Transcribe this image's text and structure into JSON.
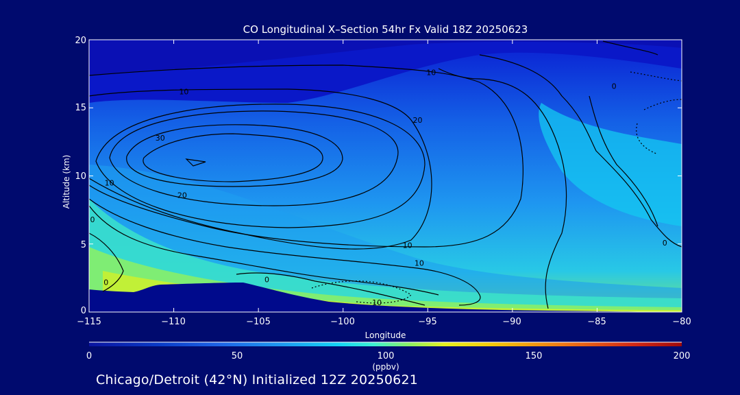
{
  "chart_data": {
    "type": "heatmap",
    "title": "CO Longitudinal X–Section 54hr  Fx Valid 18Z 20250623",
    "xlabel": "Longitude",
    "ylabel": "Altitude (km)",
    "xlim": [
      -115,
      -80
    ],
    "ylim": [
      0,
      20
    ],
    "x_ticks": [
      "−115",
      "−110",
      "−105",
      "−100",
      "−95",
      "−90",
      "−85",
      "−80"
    ],
    "y_ticks": [
      "0",
      "5",
      "10",
      "15",
      "20"
    ],
    "colorbar": {
      "range": [
        0,
        200
      ],
      "ticks": [
        "0",
        "50",
        "100",
        "150",
        "200"
      ],
      "unit": "(ppbv)",
      "colors": [
        "#0a14a0",
        "#0a3cc8",
        "#1e64e6",
        "#1e96f0",
        "#14d2f5",
        "#3cf0d2",
        "#8cf064",
        "#e6f01e",
        "#f5c80a",
        "#f07814",
        "#d22814",
        "#a00a0a"
      ]
    },
    "contour_labels": [
      {
        "text": "30",
        "x": -110.8,
        "y": 12.8
      },
      {
        "text": "20",
        "x": -109.5,
        "y": 8.6
      },
      {
        "text": "10",
        "x": -113.8,
        "y": 9.5
      },
      {
        "text": "10",
        "x": -109.4,
        "y": 16.2
      },
      {
        "text": "10",
        "x": -94.8,
        "y": 17.6
      },
      {
        "text": "20",
        "x": -95.6,
        "y": 14.1
      },
      {
        "text": "10",
        "x": -96.2,
        "y": 4.9
      },
      {
        "text": "10",
        "x": -95.5,
        "y": 3.6
      },
      {
        "text": "10",
        "x": -98.0,
        "y": 0.7
      },
      {
        "text": "0",
        "x": -84.0,
        "y": 16.6
      },
      {
        "text": "0",
        "x": -81.0,
        "y": 5.1
      },
      {
        "text": "0",
        "x": -114.0,
        "y": 2.2
      },
      {
        "text": "0",
        "x": -104.5,
        "y": 2.4
      },
      {
        "text": "0",
        "x": -114.8,
        "y": 6.8
      }
    ]
  },
  "footer": "Chicago/Detroit (42°N) Initialized 12Z 20250621"
}
